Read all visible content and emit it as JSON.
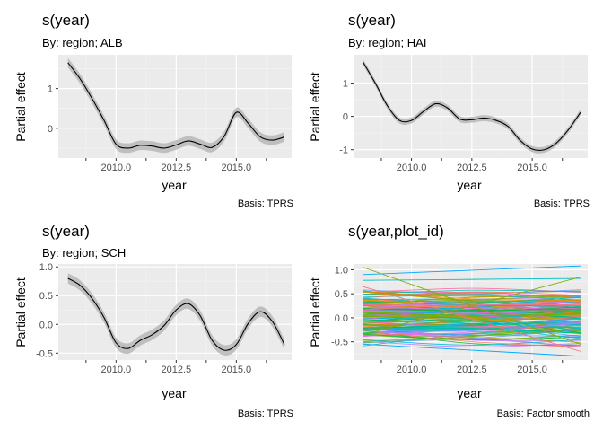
{
  "chart_data": [
    {
      "type": "line",
      "title": "s(year)",
      "subtitle": "By: region; ALB",
      "xlabel": "year",
      "ylabel": "Partial effect",
      "caption": "Basis: TPRS",
      "xlim": [
        2007.6,
        2017.3
      ],
      "ylim": [
        -0.75,
        1.85
      ],
      "xticks": [
        2010.0,
        2012.5,
        2015.0
      ],
      "xtick_labels": [
        "2010.0",
        "2012.5",
        "2015.0"
      ],
      "xminor": [
        2008.75,
        2011.25,
        2013.75,
        2016.25
      ],
      "yticks": [
        0,
        1
      ],
      "ytick_labels": [
        "0",
        "1"
      ],
      "yminor": [
        -0.5,
        0.5,
        1.5
      ],
      "grid": true,
      "band": 0.12,
      "series": [
        {
          "x": [
            2008.0,
            2008.5,
            2009.0,
            2009.5,
            2010.0,
            2010.5,
            2011.0,
            2011.5,
            2012.0,
            2012.5,
            2013.0,
            2013.5,
            2014.0,
            2014.5,
            2015.0,
            2015.5,
            2016.0,
            2016.5,
            2017.0
          ],
          "y": [
            1.65,
            1.25,
            0.75,
            0.2,
            -0.4,
            -0.5,
            -0.43,
            -0.45,
            -0.5,
            -0.42,
            -0.32,
            -0.4,
            -0.48,
            -0.2,
            0.4,
            0.12,
            -0.22,
            -0.3,
            -0.22
          ]
        }
      ]
    },
    {
      "type": "line",
      "title": "s(year)",
      "subtitle": "By: region; HAI",
      "xlabel": "year",
      "ylabel": "Partial effect",
      "caption": "Basis: TPRS",
      "xlim": [
        2007.6,
        2017.3
      ],
      "ylim": [
        -1.25,
        1.85
      ],
      "xticks": [
        2010.0,
        2012.5,
        2015.0
      ],
      "xtick_labels": [
        "2010.0",
        "2012.5",
        "2015.0"
      ],
      "xminor": [
        2008.75,
        2011.25,
        2013.75,
        2016.25
      ],
      "yticks": [
        -1,
        0,
        1
      ],
      "ytick_labels": [
        "-1",
        "0",
        "1"
      ],
      "yminor": [
        -0.5,
        0.5,
        1.5
      ],
      "grid": true,
      "band": 0.09,
      "series": [
        {
          "x": [
            2008.0,
            2008.5,
            2009.0,
            2009.5,
            2010.0,
            2010.5,
            2011.0,
            2011.5,
            2012.0,
            2012.5,
            2013.0,
            2013.5,
            2014.0,
            2014.5,
            2015.0,
            2015.5,
            2016.0,
            2016.5,
            2017.0
          ],
          "y": [
            1.62,
            1.0,
            0.32,
            -0.12,
            -0.12,
            0.15,
            0.38,
            0.25,
            -0.08,
            -0.1,
            -0.05,
            -0.12,
            -0.3,
            -0.72,
            -0.98,
            -1.0,
            -0.8,
            -0.4,
            0.12
          ]
        }
      ]
    },
    {
      "type": "line",
      "title": "s(year)",
      "subtitle": "By: region; SCH",
      "xlabel": "year",
      "ylabel": "Partial effect",
      "caption": "Basis: TPRS",
      "xlim": [
        2007.6,
        2017.3
      ],
      "ylim": [
        -0.62,
        1.05
      ],
      "xticks": [
        2010.0,
        2012.5,
        2015.0
      ],
      "xtick_labels": [
        "2010.0",
        "2012.5",
        "2015.0"
      ],
      "xminor": [
        2008.75,
        2011.25,
        2013.75,
        2016.25
      ],
      "yticks": [
        -0.5,
        0.0,
        0.5,
        1.0
      ],
      "ytick_labels": [
        "-0.5",
        "0.0",
        "0.5",
        "1.0"
      ],
      "yminor": [
        -0.25,
        0.25,
        0.75
      ],
      "grid": true,
      "band": 0.09,
      "series": [
        {
          "x": [
            2008.0,
            2008.5,
            2009.0,
            2009.5,
            2010.0,
            2010.5,
            2011.0,
            2011.5,
            2012.0,
            2012.5,
            2013.0,
            2013.5,
            2014.0,
            2014.5,
            2015.0,
            2015.5,
            2016.0,
            2016.5,
            2017.0
          ],
          "y": [
            0.8,
            0.68,
            0.45,
            0.12,
            -0.32,
            -0.42,
            -0.28,
            -0.18,
            -0.02,
            0.25,
            0.36,
            0.15,
            -0.28,
            -0.45,
            -0.35,
            0.02,
            0.22,
            0.05,
            -0.35
          ]
        }
      ]
    },
    {
      "type": "line",
      "title": "s(year,plot_id)",
      "subtitle": "",
      "xlabel": "year",
      "ylabel": "Partial effect",
      "caption": "Basis: Factor smooth",
      "xlim": [
        2007.6,
        2017.3
      ],
      "ylim": [
        -0.88,
        1.12
      ],
      "xticks": [
        2010.0,
        2012.5,
        2015.0
      ],
      "xtick_labels": [
        "2010.0",
        "2012.5",
        "2015.0"
      ],
      "xminor": [
        2008.75,
        2011.25,
        2013.75,
        2016.25
      ],
      "yticks": [
        -0.5,
        0.0,
        0.5,
        1.0
      ],
      "ytick_labels": [
        "-0.5",
        "0.0",
        "0.5",
        "1.0"
      ],
      "yminor": [
        -0.75,
        -0.25,
        0.25,
        0.75
      ],
      "grid": true,
      "factor_smooth": {
        "x_range": [
          2008.0,
          2017.0
        ],
        "bundle_center_range": [
          -0.45,
          0.45
        ],
        "extreme_lines": [
          {
            "start": 1.05,
            "end": -0.55,
            "color": "#7CAE00"
          },
          {
            "start": 0.9,
            "end": 1.08,
            "color": "#00A9FF"
          },
          {
            "start": -0.55,
            "end": -0.8,
            "color": "#00A9FF"
          },
          {
            "start": 0.78,
            "end": 0.82,
            "color": "#00BFC4"
          },
          {
            "start": -0.35,
            "end": 0.85,
            "color": "#7CAE00"
          },
          {
            "start": 0.65,
            "end": -0.7,
            "color": "#F8766D"
          }
        ],
        "palette": [
          "#F8766D",
          "#E58700",
          "#C99800",
          "#A3A500",
          "#6BB100",
          "#00BA38",
          "#00BF7D",
          "#00C0AF",
          "#00BCD8",
          "#00B0F6",
          "#619CFF",
          "#B983FF",
          "#E76BF3",
          "#FD61D1",
          "#FF67A4"
        ]
      }
    }
  ]
}
